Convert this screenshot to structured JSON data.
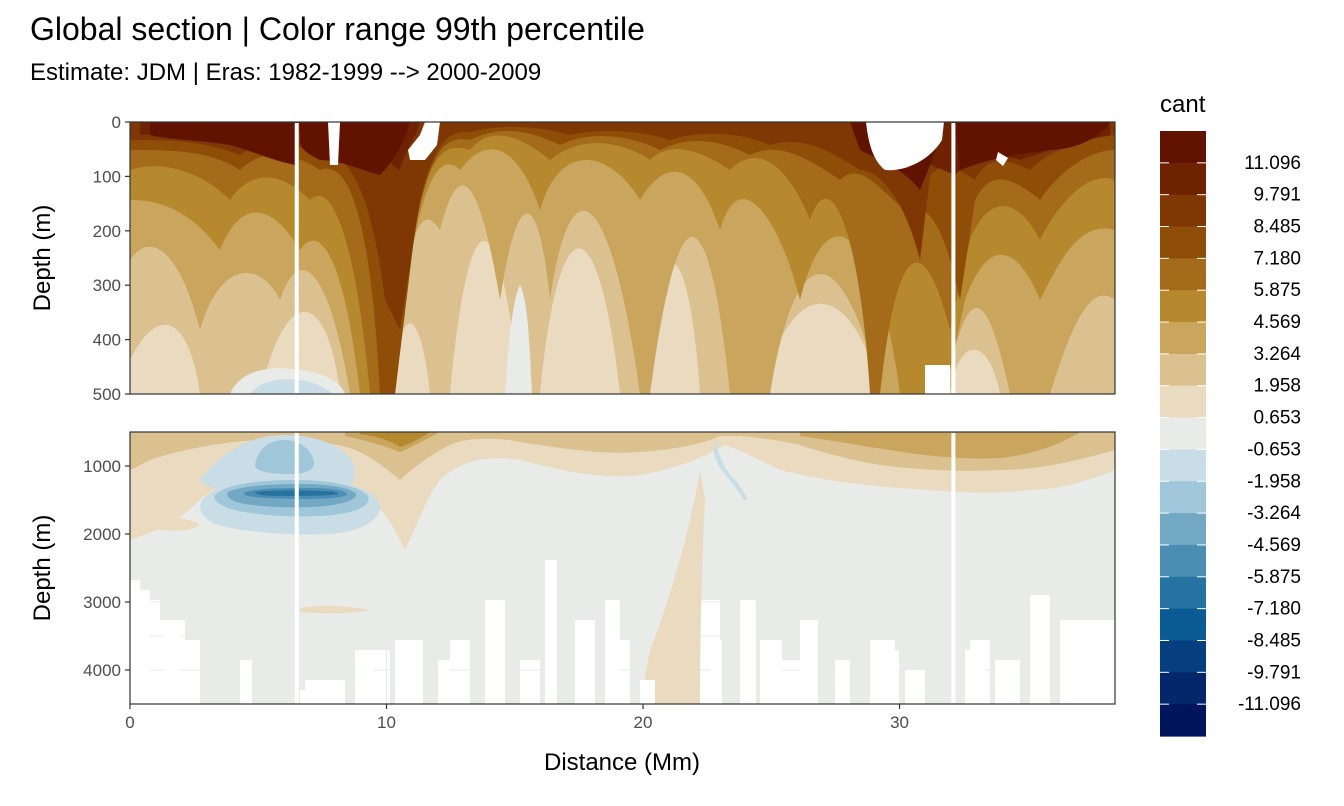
{
  "chart_data": {
    "type": "heatmap",
    "title": "Global section | Color range 99th percentile",
    "subtitle": "Estimate: JDM  | Eras: 1982-1999 --> 2000-2009",
    "xlabel": "Distance (Mm)",
    "xlim": [
      0,
      38.4
    ],
    "xticks": [
      0,
      10,
      20,
      30
    ],
    "panels": [
      {
        "ylabel": "Depth (m)",
        "ylim": [
          0,
          500
        ],
        "yticks": [
          0,
          100,
          200,
          300,
          400,
          500
        ]
      },
      {
        "ylabel": "Depth (m)",
        "ylim": [
          500,
          4500
        ],
        "yticks": [
          1000,
          2000,
          3000,
          4000
        ]
      }
    ],
    "legend": {
      "title": "cant",
      "position": "right",
      "labels": [
        "11.096",
        "9.791",
        "8.485",
        "7.180",
        "5.875",
        "4.569",
        "3.264",
        "1.958",
        "0.653",
        "-0.653",
        "-1.958",
        "-3.264",
        "-4.569",
        "-5.875",
        "-7.180",
        "-8.485",
        "-9.791",
        "-11.096"
      ],
      "colors": [
        "#611300",
        "#6f2200",
        "#7f3703",
        "#8e4e07",
        "#a46b1b",
        "#b6892f",
        "#c9a55e",
        "#dbc190",
        "#eadbc0",
        "#e9ebe9",
        "#c9dde7",
        "#9fc6d9",
        "#73a8c5",
        "#4b8db3",
        "#2672a1",
        "#0a5b93",
        "#053f7f",
        "#03276a",
        "#00155b"
      ]
    },
    "gaps_x": [
      6.5,
      32.1
    ],
    "notes_visible": "filled contour section of cant vs distance and depth"
  }
}
